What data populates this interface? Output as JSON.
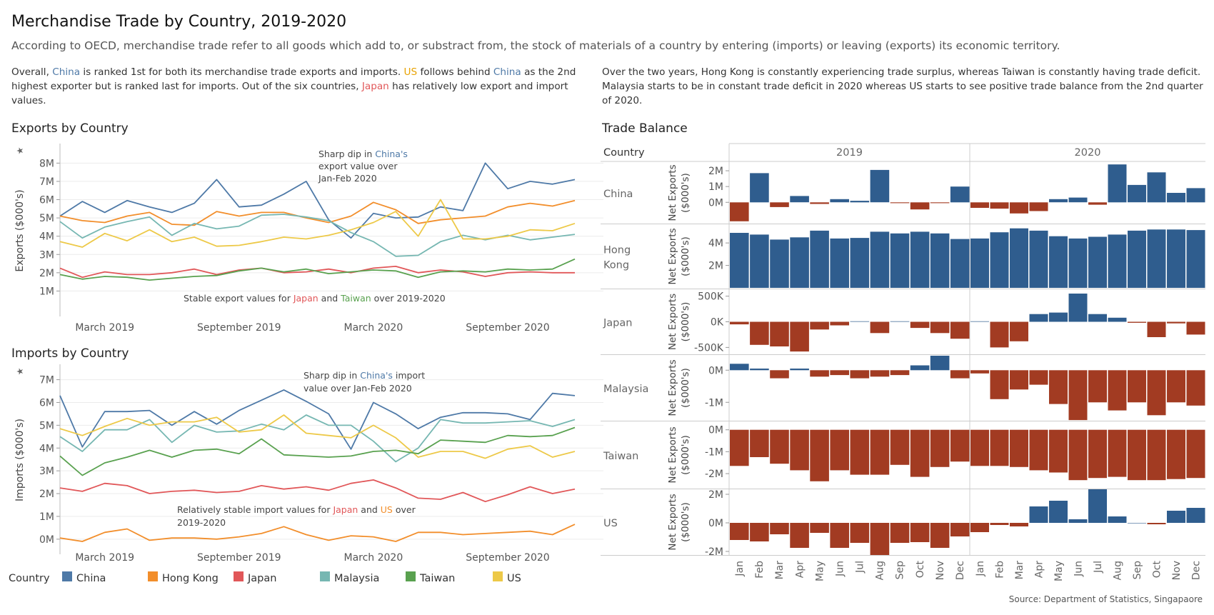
{
  "header": {
    "title": "Merchandise Trade by Country, 2019-2020",
    "subtitle": "According to OECD, merchandise trade refer to all goods which add to, or substract from, the stock of materials of a country by entering (imports) or leaving (exports) its economic territory."
  },
  "left_text": {
    "p1": "Overall, ",
    "p2": "China",
    "p3": " is ranked 1st for both its merchandise trade exports and imports. ",
    "p4": "US",
    "p5": " follows behind ",
    "p6": "China",
    "p7": " as the 2nd highest exporter but is ranked last for imports. Out of the six countries, ",
    "p8": "Japan",
    "p9": " has relatively low export and import values."
  },
  "right_text": "Over the two years, Hong Kong is constantly experiencing trade surplus, whereas Taiwan is constantly having trade deficit. Malaysia starts to be in constant trade deficit in 2020 whereas US starts to see positive trade balance from the 2nd quarter of 2020.",
  "source": "Source: Department of Statistics, Singapaore",
  "colors": {
    "China": "#4e79a7",
    "Hong Kong": "#f28e2b",
    "Japan": "#e15759",
    "Malaysia": "#76b7b2",
    "Taiwan": "#59a14f",
    "US": "#edc948",
    "positive_bar": "#2f5d8e",
    "negative_bar": "#a23b22"
  },
  "legend": {
    "title": "Country",
    "items": [
      "China",
      "Hong Kong",
      "Japan",
      "Malaysia",
      "Taiwan",
      "US"
    ]
  },
  "chart_data": [
    {
      "type": "line",
      "title": "Exports by Country",
      "ylabel": "Exports ($000's)",
      "ylim": [
        0,
        8.6
      ],
      "yticks": [
        "1M",
        "2M",
        "3M",
        "4M",
        "5M",
        "6M",
        "7M",
        "8M"
      ],
      "ytick_values": [
        1,
        2,
        3,
        4,
        5,
        6,
        7,
        8
      ],
      "unit": "millions",
      "x": [
        "2019-01",
        "2019-02",
        "2019-03",
        "2019-04",
        "2019-05",
        "2019-06",
        "2019-07",
        "2019-08",
        "2019-09",
        "2019-10",
        "2019-11",
        "2019-12",
        "2020-01",
        "2020-02",
        "2020-03",
        "2020-04",
        "2020-05",
        "2020-06",
        "2020-07",
        "2020-08",
        "2020-09",
        "2020-10",
        "2020-11",
        "2020-12"
      ],
      "xticks": [
        {
          "label": "March 2019",
          "at": "2019-03"
        },
        {
          "label": "September 2019",
          "at": "2019-09"
        },
        {
          "label": "March 2020",
          "at": "2020-03"
        },
        {
          "label": "September 2020",
          "at": "2020-09"
        }
      ],
      "series": [
        {
          "name": "China",
          "values": [
            5.1,
            5.9,
            5.3,
            5.95,
            5.6,
            5.3,
            5.8,
            7.1,
            5.6,
            5.7,
            6.3,
            7.0,
            4.9,
            3.9,
            5.25,
            5.0,
            5.05,
            5.6,
            5.4,
            8.0,
            6.6,
            7.0,
            6.85,
            7.1
          ]
        },
        {
          "name": "Hong Kong",
          "values": [
            5.1,
            4.85,
            4.75,
            5.1,
            5.3,
            4.65,
            4.6,
            5.35,
            5.1,
            5.3,
            5.3,
            5.0,
            4.75,
            5.1,
            5.85,
            5.45,
            4.7,
            4.9,
            5.0,
            5.1,
            5.6,
            5.8,
            5.65,
            5.95
          ]
        },
        {
          "name": "Malaysia",
          "values": [
            4.8,
            3.9,
            4.5,
            4.8,
            5.05,
            4.05,
            4.7,
            4.4,
            4.55,
            5.15,
            5.2,
            5.05,
            4.85,
            4.2,
            3.7,
            2.9,
            2.95,
            3.7,
            4.05,
            3.8,
            4.05,
            3.8,
            3.95,
            4.1
          ]
        },
        {
          "name": "US",
          "values": [
            3.7,
            3.4,
            4.15,
            3.75,
            4.35,
            3.7,
            3.95,
            3.45,
            3.5,
            3.7,
            3.95,
            3.85,
            4.05,
            4.35,
            4.75,
            5.35,
            4.0,
            6.0,
            3.85,
            3.85,
            4.0,
            4.35,
            4.3,
            4.7
          ]
        },
        {
          "name": "Japan",
          "values": [
            2.25,
            1.75,
            2.05,
            1.9,
            1.9,
            2.0,
            2.2,
            1.9,
            2.15,
            2.25,
            2.0,
            2.05,
            2.2,
            2.0,
            2.25,
            2.35,
            2.0,
            2.15,
            2.05,
            1.8,
            2.0,
            2.05,
            2.0,
            2.0
          ]
        },
        {
          "name": "Taiwan",
          "values": [
            1.9,
            1.65,
            1.8,
            1.75,
            1.6,
            1.7,
            1.8,
            1.85,
            2.1,
            2.25,
            2.05,
            2.2,
            1.95,
            2.05,
            2.15,
            2.1,
            1.75,
            2.05,
            2.1,
            2.05,
            2.2,
            2.15,
            2.2,
            2.75
          ]
        }
      ],
      "annotations": [
        {
          "parts": [
            {
              "t": "Sharp dip in "
            },
            {
              "t": "China's",
              "c": "China"
            }
          ]
        },
        {
          "parts": [
            {
              "t": "export value over"
            }
          ]
        },
        {
          "parts": [
            {
              "t": "Jan-Feb 2020"
            }
          ]
        },
        {
          "parts": [
            {
              "t": "Stable export values for "
            },
            {
              "t": "Japan",
              "c": "Japan"
            },
            {
              "t": " and "
            },
            {
              "t": "Taiwan",
              "c": "Taiwan"
            },
            {
              "t": " over 2019-2020"
            }
          ]
        }
      ]
    },
    {
      "type": "line",
      "title": "Imports by Country",
      "ylabel": "Imports ($000's)",
      "ylim": [
        -0.35,
        7.3
      ],
      "yticks": [
        "0M",
        "1M",
        "2M",
        "3M",
        "4M",
        "5M",
        "6M",
        "7M"
      ],
      "ytick_values": [
        0,
        1,
        2,
        3,
        4,
        5,
        6,
        7
      ],
      "unit": "millions",
      "x": [
        "2019-01",
        "2019-02",
        "2019-03",
        "2019-04",
        "2019-05",
        "2019-06",
        "2019-07",
        "2019-08",
        "2019-09",
        "2019-10",
        "2019-11",
        "2019-12",
        "2020-01",
        "2020-02",
        "2020-03",
        "2020-04",
        "2020-05",
        "2020-06",
        "2020-07",
        "2020-08",
        "2020-09",
        "2020-10",
        "2020-11",
        "2020-12"
      ],
      "xticks": [
        {
          "label": "March 2019",
          "at": "2019-03"
        },
        {
          "label": "September 2019",
          "at": "2019-09"
        },
        {
          "label": "March 2020",
          "at": "2020-03"
        },
        {
          "label": "September 2020",
          "at": "2020-09"
        }
      ],
      "series": [
        {
          "name": "China",
          "values": [
            6.3,
            4.05,
            5.6,
            5.6,
            5.65,
            5.0,
            5.6,
            5.05,
            5.65,
            6.1,
            6.55,
            6.05,
            5.5,
            3.95,
            6.0,
            5.5,
            4.85,
            5.35,
            5.55,
            5.55,
            5.5,
            5.25,
            6.4,
            6.3
          ]
        },
        {
          "name": "Malaysia",
          "values": [
            4.5,
            3.85,
            4.8,
            4.8,
            5.25,
            4.25,
            5.0,
            4.7,
            4.75,
            5.05,
            4.8,
            5.45,
            5.0,
            5.0,
            4.3,
            3.4,
            4.0,
            5.25,
            5.1,
            5.1,
            5.15,
            5.2,
            4.95,
            5.25
          ]
        },
        {
          "name": "US",
          "values": [
            4.85,
            4.55,
            4.95,
            5.3,
            5.0,
            5.15,
            5.15,
            5.35,
            4.7,
            4.8,
            5.45,
            4.65,
            4.55,
            4.45,
            5.0,
            4.45,
            3.6,
            3.85,
            3.85,
            3.55,
            3.95,
            4.1,
            3.6,
            3.85
          ]
        },
        {
          "name": "Taiwan",
          "values": [
            3.65,
            2.8,
            3.35,
            3.6,
            3.9,
            3.6,
            3.9,
            3.95,
            3.75,
            4.4,
            3.7,
            3.65,
            3.6,
            3.65,
            3.85,
            3.9,
            3.75,
            4.35,
            4.3,
            4.25,
            4.55,
            4.5,
            4.55,
            4.9
          ]
        },
        {
          "name": "Japan",
          "values": [
            2.25,
            2.1,
            2.45,
            2.35,
            2.0,
            2.1,
            2.15,
            2.05,
            2.1,
            2.35,
            2.2,
            2.3,
            2.15,
            2.45,
            2.6,
            2.25,
            1.8,
            1.75,
            2.05,
            1.65,
            1.95,
            2.3,
            2.0,
            2.2
          ]
        },
        {
          "name": "Hong Kong",
          "values": [
            0.05,
            -0.1,
            0.3,
            0.45,
            -0.05,
            0.05,
            0.05,
            0.0,
            0.1,
            0.25,
            0.55,
            0.2,
            -0.05,
            0.15,
            0.1,
            -0.1,
            0.3,
            0.3,
            0.2,
            0.25,
            0.3,
            0.35,
            0.2,
            0.65
          ]
        }
      ],
      "annotations": [
        {
          "parts": [
            {
              "t": "Sharp dip in "
            },
            {
              "t": "China's",
              "c": "China"
            },
            {
              "t": " import"
            }
          ]
        },
        {
          "parts": [
            {
              "t": "value over Jan-Feb 2020"
            }
          ]
        },
        {
          "parts": [
            {
              "t": "Relatively stable import values for "
            },
            {
              "t": "Japan",
              "c": "Japan"
            },
            {
              "t": " and "
            },
            {
              "t": "US",
              "c": "Hong Kong"
            },
            {
              "t": " over"
            }
          ]
        },
        {
          "parts": [
            {
              "t": "2019-2020"
            }
          ]
        }
      ]
    },
    {
      "type": "bar",
      "title": "Trade Balance",
      "row_header": "Country",
      "column_headers": [
        "2019",
        "2020"
      ],
      "months": [
        "Jan",
        "Feb",
        "Mar",
        "Apr",
        "May",
        "Jun",
        "Jul",
        "Aug",
        "Sep",
        "Oct",
        "Nov",
        "Dec"
      ],
      "ylabel": "Net Exports ($000's)",
      "panels": [
        {
          "country": "China",
          "ylim": [
            -1.3,
            2.5
          ],
          "ticks": [
            {
              "v": 2,
              "l": "2M"
            },
            {
              "v": 1,
              "l": "1M"
            },
            {
              "v": 0,
              "l": "0M"
            }
          ],
          "values": [
            -1.2,
            1.85,
            -0.3,
            0.4,
            -0.1,
            0.2,
            0.1,
            2.05,
            -0.05,
            -0.45,
            -0.05,
            1.0,
            -0.35,
            -0.4,
            -0.7,
            -0.55,
            0.2,
            0.3,
            -0.15,
            2.4,
            1.1,
            1.9,
            0.6,
            0.9
          ]
        },
        {
          "country": "Hong Kong",
          "ylim": [
            0,
            5.6
          ],
          "ticks": [
            {
              "v": 4,
              "l": "4M"
            },
            {
              "v": 2,
              "l": "2M"
            }
          ],
          "values": [
            4.9,
            4.75,
            4.3,
            4.5,
            5.1,
            4.4,
            4.45,
            5.0,
            4.85,
            5.0,
            4.85,
            4.35,
            4.4,
            4.95,
            5.3,
            5.1,
            4.6,
            4.4,
            4.55,
            4.75,
            5.1,
            5.2,
            5.2,
            5.15
          ]
        },
        {
          "country": "Japan",
          "ylim": [
            -0.62,
            0.62
          ],
          "ticks": [
            {
              "v": 0.5,
              "l": "500K"
            },
            {
              "v": 0,
              "l": "0K"
            },
            {
              "v": -0.5,
              "l": "-500K"
            }
          ],
          "values": [
            -0.05,
            -0.45,
            -0.48,
            -0.58,
            -0.15,
            -0.07,
            0.01,
            -0.22,
            0.01,
            -0.12,
            -0.22,
            -0.33,
            0.01,
            -0.5,
            -0.38,
            0.15,
            0.18,
            0.55,
            0.15,
            0.08,
            -0.02,
            -0.3,
            -0.03,
            -0.25
          ]
        },
        {
          "country": "Malaysia",
          "ylim": [
            -1.55,
            0.45
          ],
          "ticks": [
            {
              "v": 0,
              "l": "0M"
            },
            {
              "v": -1,
              "l": "-1M"
            }
          ],
          "values": [
            0.2,
            0.05,
            -0.25,
            0.05,
            -0.2,
            -0.15,
            -0.25,
            -0.2,
            -0.15,
            0.15,
            0.45,
            -0.25,
            -0.1,
            -0.9,
            -0.6,
            -0.45,
            -1.05,
            -1.55,
            -1.0,
            -1.25,
            -1.0,
            -1.4,
            -1.0,
            -1.1
          ]
        },
        {
          "country": "Taiwan",
          "ylim": [
            -2.65,
            0.35
          ],
          "ticks": [
            {
              "v": 0,
              "l": "0M"
            },
            {
              "v": -1,
              "l": "-1M"
            },
            {
              "v": -2,
              "l": "-2M"
            }
          ],
          "values": [
            -1.65,
            -1.25,
            -1.55,
            -1.85,
            -2.35,
            -1.85,
            -2.05,
            -2.05,
            -1.6,
            -2.15,
            -1.7,
            -1.45,
            -1.65,
            -1.65,
            -1.7,
            -1.85,
            -1.95,
            -2.3,
            -2.2,
            -2.15,
            -2.3,
            -2.3,
            -2.25,
            -2.2
          ]
        },
        {
          "country": "US",
          "ylim": [
            -2.2,
            2.3
          ],
          "ticks": [
            {
              "v": 2,
              "l": "2M"
            },
            {
              "v": 0,
              "l": "0M"
            },
            {
              "v": -2,
              "l": "-2M"
            }
          ],
          "values": [
            -1.2,
            -1.3,
            -0.8,
            -1.75,
            -0.7,
            -1.75,
            -1.4,
            -2.25,
            -1.4,
            -1.35,
            -1.75,
            -0.95,
            -0.65,
            -0.15,
            -0.25,
            1.15,
            1.55,
            0.25,
            2.35,
            0.45,
            0.0,
            -0.1,
            0.85,
            1.05
          ]
        }
      ]
    }
  ]
}
